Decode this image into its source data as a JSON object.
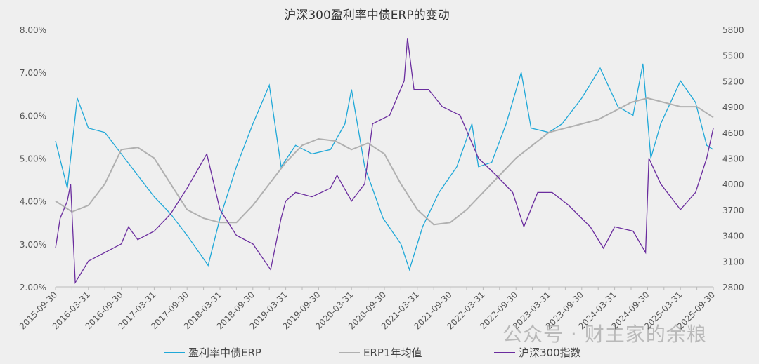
{
  "chart_data": {
    "type": "line",
    "title": "沪深300盈利率中债ERP的变动",
    "x_unit": "year (fractional)",
    "xlim": [
      2015.75,
      2025.75
    ],
    "x_tick_labels": [
      "2015-09-30",
      "2016-03-31",
      "2016-09-30",
      "2017-03-31",
      "2017-09-30",
      "2018-03-31",
      "2018-09-30",
      "2019-03-31",
      "2019-09-30",
      "2020-03-31",
      "2020-09-30",
      "2021-03-31",
      "2021-09-30",
      "2022-03-31",
      "2022-09-30",
      "2023-03-31",
      "2023-09-30",
      "2024-03-31",
      "2024-09-30",
      "2025-03-31",
      "2025-09-30"
    ],
    "y_left": {
      "min": 2,
      "max": 8,
      "ticks": [
        "2.00%",
        "3.00%",
        "4.00%",
        "5.00%",
        "6.00%",
        "7.00%",
        "8.00%"
      ]
    },
    "y_right": {
      "min": 2800,
      "max": 5800,
      "ticks": [
        "2800",
        "3100",
        "3400",
        "3700",
        "4000",
        "4300",
        "4600",
        "4900",
        "5200",
        "5500",
        "5800"
      ]
    },
    "series": [
      {
        "name": "盈利率中债ERP",
        "axis": "left",
        "color": "#1fa8d8",
        "points": [
          [
            2015.75,
            5.4
          ],
          [
            2015.93,
            4.3
          ],
          [
            2016.08,
            6.4
          ],
          [
            2016.25,
            5.7
          ],
          [
            2016.5,
            5.6
          ],
          [
            2016.75,
            5.1
          ],
          [
            2017.0,
            4.6
          ],
          [
            2017.25,
            4.1
          ],
          [
            2017.5,
            3.7
          ],
          [
            2017.75,
            3.2
          ],
          [
            2018.07,
            2.5
          ],
          [
            2018.25,
            3.6
          ],
          [
            2018.5,
            4.8
          ],
          [
            2018.75,
            5.8
          ],
          [
            2019.0,
            6.7
          ],
          [
            2019.18,
            4.8
          ],
          [
            2019.4,
            5.3
          ],
          [
            2019.65,
            5.1
          ],
          [
            2019.93,
            5.2
          ],
          [
            2020.15,
            5.8
          ],
          [
            2020.25,
            6.6
          ],
          [
            2020.45,
            4.8
          ],
          [
            2020.73,
            3.6
          ],
          [
            2021.0,
            3.0
          ],
          [
            2021.13,
            2.4
          ],
          [
            2021.33,
            3.4
          ],
          [
            2021.58,
            4.2
          ],
          [
            2021.85,
            4.8
          ],
          [
            2022.08,
            5.8
          ],
          [
            2022.18,
            4.8
          ],
          [
            2022.38,
            4.9
          ],
          [
            2022.6,
            5.8
          ],
          [
            2022.83,
            7.0
          ],
          [
            2022.98,
            5.7
          ],
          [
            2023.25,
            5.6
          ],
          [
            2023.45,
            5.8
          ],
          [
            2023.75,
            6.4
          ],
          [
            2024.03,
            7.1
          ],
          [
            2024.3,
            6.2
          ],
          [
            2024.53,
            6.0
          ],
          [
            2024.68,
            7.2
          ],
          [
            2024.8,
            5.0
          ],
          [
            2024.95,
            5.8
          ],
          [
            2025.25,
            6.8
          ],
          [
            2025.48,
            6.3
          ],
          [
            2025.65,
            5.3
          ],
          [
            2025.75,
            5.2
          ]
        ]
      },
      {
        "name": "ERP1年均值",
        "axis": "left",
        "color": "#b0b0b0",
        "points": [
          [
            2015.75,
            4.0
          ],
          [
            2016.0,
            3.75
          ],
          [
            2016.25,
            3.9
          ],
          [
            2016.5,
            4.4
          ],
          [
            2016.75,
            5.2
          ],
          [
            2017.0,
            5.25
          ],
          [
            2017.25,
            5.0
          ],
          [
            2017.5,
            4.4
          ],
          [
            2017.75,
            3.8
          ],
          [
            2018.0,
            3.6
          ],
          [
            2018.25,
            3.5
          ],
          [
            2018.5,
            3.5
          ],
          [
            2018.75,
            3.9
          ],
          [
            2019.0,
            4.4
          ],
          [
            2019.25,
            4.9
          ],
          [
            2019.5,
            5.3
          ],
          [
            2019.75,
            5.45
          ],
          [
            2020.0,
            5.4
          ],
          [
            2020.25,
            5.2
          ],
          [
            2020.5,
            5.35
          ],
          [
            2020.75,
            5.1
          ],
          [
            2021.0,
            4.4
          ],
          [
            2021.25,
            3.8
          ],
          [
            2021.5,
            3.45
          ],
          [
            2021.75,
            3.5
          ],
          [
            2022.0,
            3.8
          ],
          [
            2022.25,
            4.2
          ],
          [
            2022.5,
            4.6
          ],
          [
            2022.75,
            5.0
          ],
          [
            2023.0,
            5.3
          ],
          [
            2023.25,
            5.6
          ],
          [
            2023.5,
            5.7
          ],
          [
            2023.75,
            5.8
          ],
          [
            2024.0,
            5.9
          ],
          [
            2024.25,
            6.1
          ],
          [
            2024.5,
            6.3
          ],
          [
            2024.75,
            6.4
          ],
          [
            2025.0,
            6.3
          ],
          [
            2025.25,
            6.2
          ],
          [
            2025.5,
            6.2
          ],
          [
            2025.75,
            5.95
          ]
        ]
      },
      {
        "name": "沪深300指数",
        "axis": "right",
        "color": "#6a2c9e",
        "points": [
          [
            2015.75,
            3250
          ],
          [
            2015.82,
            3600
          ],
          [
            2015.93,
            3800
          ],
          [
            2015.98,
            4000
          ],
          [
            2016.05,
            2850
          ],
          [
            2016.25,
            3100
          ],
          [
            2016.5,
            3200
          ],
          [
            2016.75,
            3300
          ],
          [
            2016.86,
            3500
          ],
          [
            2017.0,
            3350
          ],
          [
            2017.25,
            3450
          ],
          [
            2017.5,
            3650
          ],
          [
            2017.75,
            3950
          ],
          [
            2018.05,
            4350
          ],
          [
            2018.25,
            3700
          ],
          [
            2018.5,
            3400
          ],
          [
            2018.75,
            3300
          ],
          [
            2019.02,
            3000
          ],
          [
            2019.18,
            3600
          ],
          [
            2019.25,
            3800
          ],
          [
            2019.4,
            3900
          ],
          [
            2019.65,
            3850
          ],
          [
            2019.93,
            3950
          ],
          [
            2020.03,
            4100
          ],
          [
            2020.25,
            3800
          ],
          [
            2020.45,
            4000
          ],
          [
            2020.57,
            4700
          ],
          [
            2020.83,
            4800
          ],
          [
            2021.05,
            5200
          ],
          [
            2021.1,
            5700
          ],
          [
            2021.2,
            5100
          ],
          [
            2021.42,
            5100
          ],
          [
            2021.63,
            4900
          ],
          [
            2021.9,
            4800
          ],
          [
            2022.18,
            4300
          ],
          [
            2022.45,
            4100
          ],
          [
            2022.7,
            3900
          ],
          [
            2022.87,
            3500
          ],
          [
            2023.08,
            3900
          ],
          [
            2023.3,
            3900
          ],
          [
            2023.55,
            3750
          ],
          [
            2023.88,
            3500
          ],
          [
            2024.08,
            3250
          ],
          [
            2024.25,
            3500
          ],
          [
            2024.53,
            3450
          ],
          [
            2024.72,
            3200
          ],
          [
            2024.77,
            4300
          ],
          [
            2024.95,
            4000
          ],
          [
            2025.25,
            3700
          ],
          [
            2025.48,
            3900
          ],
          [
            2025.65,
            4300
          ],
          [
            2025.75,
            4650
          ]
        ]
      }
    ]
  },
  "watermark": "公众号 · 财主家的余粮"
}
